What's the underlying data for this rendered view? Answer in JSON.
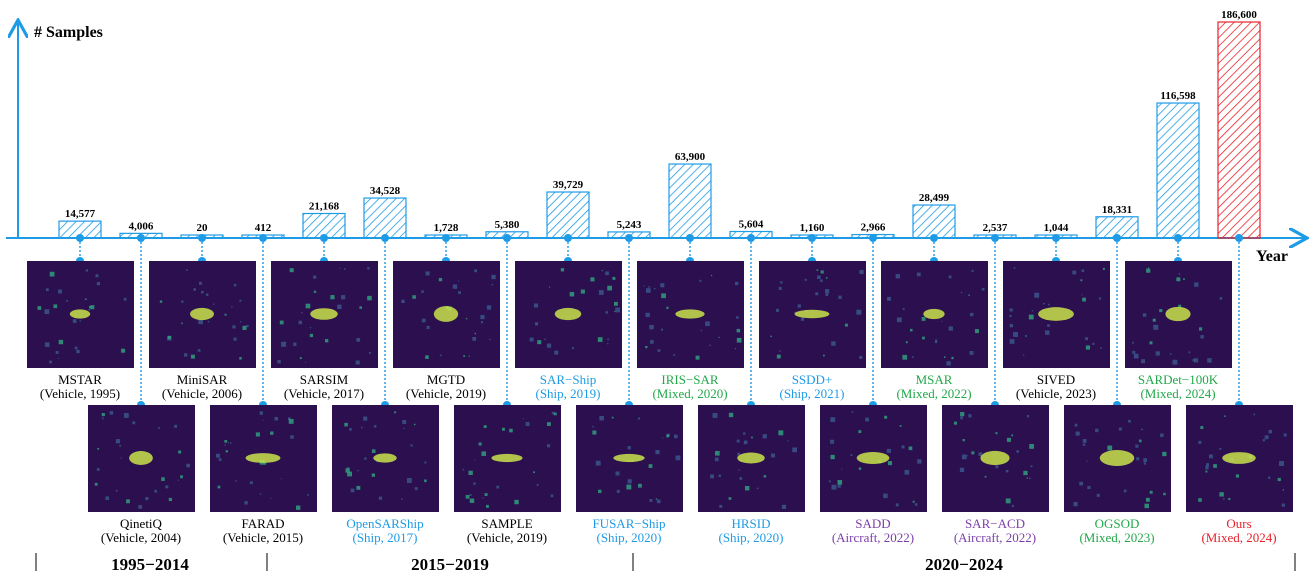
{
  "chart_data": {
    "type": "bar",
    "y_axis_label": "# Samples",
    "x_axis_label": "Year",
    "grid": false,
    "colors": {
      "axis": "#1e9be6",
      "bar": "#1e9be6",
      "ours_bar": "#e8222b",
      "vehicle": "#000000",
      "ship": "#1e9be6",
      "mixed": "#22a84a",
      "aircraft": "#7c3fa8",
      "ours": "#e8222b"
    },
    "datasets": [
      {
        "name": "MSTAR",
        "detail": "(Vehicle, 1995)",
        "value": 14577,
        "value_label": "14,577",
        "category": "vehicle",
        "row": "top"
      },
      {
        "name": "QinetiQ",
        "detail": "(Vehicle, 2004)",
        "value": 4006,
        "value_label": "4,006",
        "category": "vehicle",
        "row": "bottom"
      },
      {
        "name": "MiniSAR",
        "detail": "(Vehicle, 2006)",
        "value": 20,
        "value_label": "20",
        "category": "vehicle",
        "row": "top"
      },
      {
        "name": "FARAD",
        "detail": "(Vehicle, 2015)",
        "value": 412,
        "value_label": "412",
        "category": "vehicle",
        "row": "bottom"
      },
      {
        "name": "SARSIM",
        "detail": "(Vehicle, 2017)",
        "value": 21168,
        "value_label": "21,168",
        "category": "vehicle",
        "row": "top"
      },
      {
        "name": "OpenSARShip",
        "detail": "(Ship, 2017)",
        "value": 34528,
        "value_label": "34,528",
        "category": "ship",
        "row": "bottom"
      },
      {
        "name": "MGTD",
        "detail": "(Vehicle, 2019)",
        "value": 1728,
        "value_label": "1,728",
        "category": "vehicle",
        "row": "top"
      },
      {
        "name": "SAMPLE",
        "detail": "(Vehicle, 2019)",
        "value": 5380,
        "value_label": "5,380",
        "category": "vehicle",
        "row": "bottom"
      },
      {
        "name": "SAR−Ship",
        "detail": "(Ship, 2019)",
        "value": 39729,
        "value_label": "39,729",
        "category": "ship",
        "row": "top"
      },
      {
        "name": "FUSAR−Ship",
        "detail": "(Ship, 2020)",
        "value": 5243,
        "value_label": "5,243",
        "category": "ship",
        "row": "bottom"
      },
      {
        "name": "IRIS−SAR",
        "detail": "(Mixed, 2020)",
        "value": 63900,
        "value_label": "63,900",
        "category": "mixed",
        "row": "top"
      },
      {
        "name": "HRSID",
        "detail": "(Ship, 2020)",
        "value": 5604,
        "value_label": "5,604",
        "category": "ship",
        "row": "bottom"
      },
      {
        "name": "SSDD+",
        "detail": "(Ship, 2021)",
        "value": 1160,
        "value_label": "1,160",
        "category": "ship",
        "row": "top"
      },
      {
        "name": "SADD",
        "detail": "(Aircraft, 2022)",
        "value": 2966,
        "value_label": "2,966",
        "category": "aircraft",
        "row": "bottom"
      },
      {
        "name": "MSAR",
        "detail": "(Mixed, 2022)",
        "value": 28499,
        "value_label": "28,499",
        "category": "mixed",
        "row": "top"
      },
      {
        "name": "SAR−ACD",
        "detail": "(Aircraft, 2022)",
        "value": 2537,
        "value_label": "2,537",
        "category": "aircraft",
        "row": "bottom"
      },
      {
        "name": "SIVED",
        "detail": "(Vehicle, 2023)",
        "value": 1044,
        "value_label": "1,044",
        "category": "vehicle",
        "row": "top"
      },
      {
        "name": "OGSOD",
        "detail": "(Mixed, 2023)",
        "value": 18331,
        "value_label": "18,331",
        "category": "mixed",
        "row": "bottom"
      },
      {
        "name": "SARDet−100K",
        "detail": "(Mixed, 2024)",
        "value": 116598,
        "value_label": "116,598",
        "category": "mixed",
        "row": "top"
      },
      {
        "name": "Ours",
        "detail": "(Mixed, 2024)",
        "value": 186600,
        "value_label": "186,600",
        "category": "ours",
        "row": "bottom"
      }
    ],
    "eras": [
      "1995−2014",
      "2015−2019",
      "2020−2024"
    ]
  }
}
